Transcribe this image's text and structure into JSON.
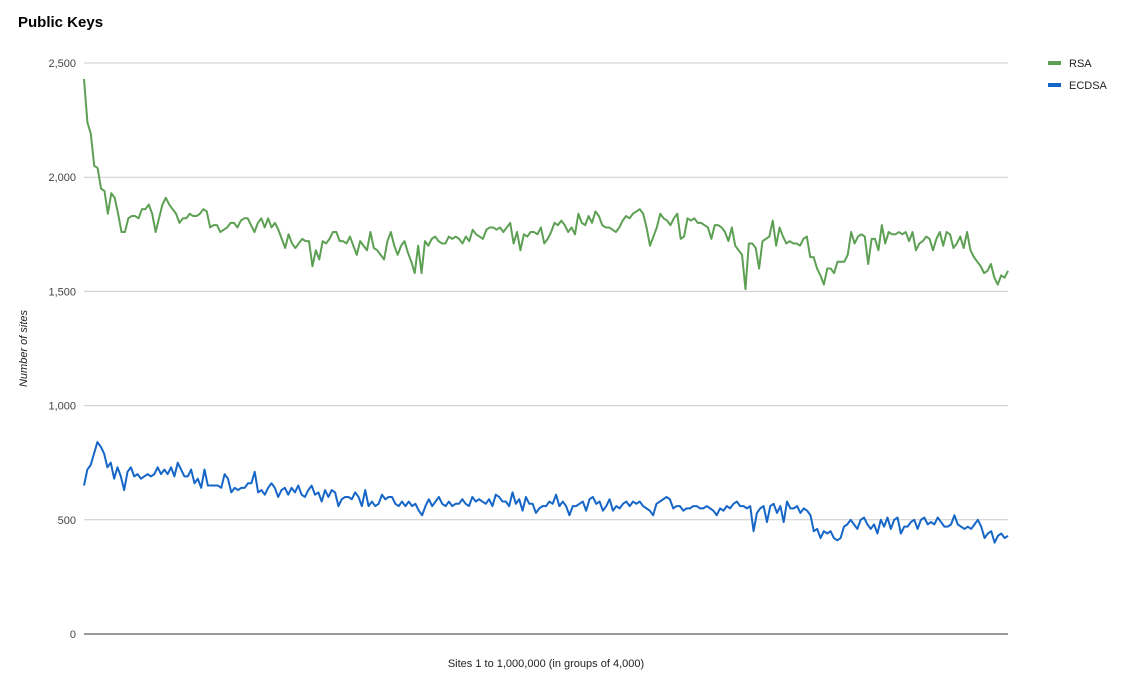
{
  "chart_data": {
    "type": "line",
    "title": "Public Keys",
    "xlabel": "Sites 1 to 1,000,000 (in groups of 4,000)",
    "ylabel": "Number of sites",
    "ylim": [
      0,
      2500
    ],
    "yticks": [
      0,
      500,
      1000,
      1500,
      2000,
      2500
    ],
    "ytick_labels": [
      "0",
      "500",
      "1,000",
      "1,500",
      "2,000",
      "2,500"
    ],
    "grid": true,
    "legend_position": "top-right",
    "series": [
      {
        "name": "RSA",
        "color": "#5da054",
        "values": [
          2430,
          2240,
          2190,
          2050,
          2040,
          1950,
          1940,
          1840,
          1930,
          1910,
          1840,
          1760,
          1760,
          1820,
          1830,
          1830,
          1820,
          1860,
          1860,
          1880,
          1840,
          1760,
          1820,
          1880,
          1910,
          1880,
          1860,
          1840,
          1800,
          1820,
          1820,
          1840,
          1830,
          1830,
          1840,
          1860,
          1850,
          1780,
          1790,
          1790,
          1760,
          1770,
          1780,
          1800,
          1800,
          1780,
          1810,
          1820,
          1820,
          1790,
          1760,
          1800,
          1820,
          1780,
          1820,
          1780,
          1800,
          1770,
          1730,
          1690,
          1750,
          1710,
          1690,
          1710,
          1730,
          1720,
          1720,
          1610,
          1680,
          1640,
          1720,
          1710,
          1730,
          1760,
          1760,
          1720,
          1720,
          1710,
          1740,
          1700,
          1660,
          1720,
          1700,
          1680,
          1760,
          1690,
          1680,
          1660,
          1640,
          1720,
          1760,
          1700,
          1660,
          1700,
          1720,
          1670,
          1630,
          1580,
          1700,
          1580,
          1720,
          1700,
          1730,
          1740,
          1720,
          1710,
          1710,
          1740,
          1730,
          1740,
          1730,
          1710,
          1740,
          1720,
          1770,
          1750,
          1740,
          1730,
          1770,
          1780,
          1780,
          1770,
          1780,
          1760,
          1780,
          1800,
          1710,
          1760,
          1680,
          1750,
          1740,
          1760,
          1760,
          1750,
          1780,
          1710,
          1730,
          1760,
          1800,
          1790,
          1810,
          1790,
          1760,
          1780,
          1750,
          1840,
          1800,
          1790,
          1830,
          1800,
          1850,
          1830,
          1790,
          1780,
          1780,
          1770,
          1760,
          1780,
          1810,
          1830,
          1820,
          1840,
          1850,
          1860,
          1840,
          1780,
          1700,
          1740,
          1780,
          1840,
          1820,
          1810,
          1790,
          1820,
          1840,
          1730,
          1740,
          1820,
          1810,
          1820,
          1800,
          1800,
          1790,
          1780,
          1730,
          1790,
          1790,
          1780,
          1760,
          1720,
          1780,
          1700,
          1680,
          1660,
          1510,
          1710,
          1710,
          1690,
          1600,
          1720,
          1730,
          1740,
          1810,
          1700,
          1780,
          1740,
          1710,
          1720,
          1710,
          1710,
          1700,
          1730,
          1740,
          1650,
          1650,
          1600,
          1570,
          1530,
          1600,
          1600,
          1580,
          1630,
          1630,
          1630,
          1660,
          1760,
          1710,
          1740,
          1750,
          1740,
          1620,
          1730,
          1730,
          1680,
          1790,
          1710,
          1760,
          1750,
          1750,
          1760,
          1750,
          1760,
          1720,
          1760,
          1680,
          1710,
          1720,
          1740,
          1730,
          1680,
          1730,
          1760,
          1700,
          1760,
          1750,
          1690,
          1710,
          1740,
          1690,
          1760,
          1680,
          1650,
          1630,
          1610,
          1580,
          1590,
          1620,
          1560,
          1530,
          1570,
          1560,
          1590
        ]
      },
      {
        "name": "ECDSA",
        "color": "#1666c7",
        "values": [
          650,
          720,
          740,
          790,
          840,
          820,
          790,
          730,
          750,
          680,
          730,
          690,
          630,
          710,
          730,
          690,
          700,
          680,
          690,
          700,
          690,
          700,
          730,
          700,
          720,
          700,
          730,
          690,
          750,
          720,
          690,
          690,
          720,
          660,
          680,
          640,
          720,
          650,
          650,
          650,
          650,
          640,
          700,
          680,
          620,
          640,
          630,
          640,
          640,
          660,
          660,
          710,
          620,
          630,
          610,
          640,
          660,
          640,
          600,
          630,
          640,
          610,
          640,
          620,
          650,
          610,
          600,
          630,
          650,
          610,
          620,
          580,
          630,
          600,
          630,
          620,
          560,
          590,
          600,
          600,
          590,
          620,
          600,
          560,
          630,
          560,
          580,
          560,
          570,
          610,
          590,
          600,
          600,
          570,
          560,
          580,
          560,
          580,
          560,
          570,
          540,
          520,
          560,
          590,
          560,
          580,
          600,
          570,
          560,
          580,
          560,
          570,
          570,
          590,
          570,
          560,
          600,
          580,
          590,
          580,
          570,
          590,
          560,
          610,
          600,
          580,
          580,
          560,
          620,
          570,
          590,
          540,
          600,
          570,
          570,
          530,
          550,
          560,
          560,
          580,
          570,
          610,
          560,
          580,
          560,
          520,
          560,
          560,
          570,
          580,
          540,
          590,
          600,
          570,
          580,
          540,
          560,
          590,
          540,
          560,
          550,
          570,
          580,
          560,
          580,
          570,
          580,
          560,
          550,
          540,
          520,
          570,
          580,
          590,
          600,
          590,
          550,
          560,
          560,
          540,
          550,
          550,
          560,
          560,
          550,
          550,
          560,
          550,
          540,
          520,
          550,
          540,
          560,
          550,
          570,
          580,
          560,
          560,
          550,
          560,
          450,
          530,
          550,
          560,
          490,
          560,
          570,
          530,
          560,
          490,
          580,
          550,
          550,
          560,
          530,
          550,
          540,
          520,
          450,
          460,
          420,
          450,
          440,
          450,
          420,
          410,
          420,
          470,
          480,
          500,
          480,
          460,
          500,
          510,
          480,
          460,
          480,
          440,
          500,
          470,
          510,
          460,
          500,
          510,
          440,
          470,
          470,
          490,
          500,
          460,
          500,
          510,
          480,
          490,
          480,
          510,
          490,
          470,
          470,
          480,
          520,
          480,
          470,
          460,
          470,
          460,
          480,
          500,
          470,
          420,
          440,
          450,
          400,
          430,
          440,
          420,
          430
        ]
      }
    ]
  }
}
